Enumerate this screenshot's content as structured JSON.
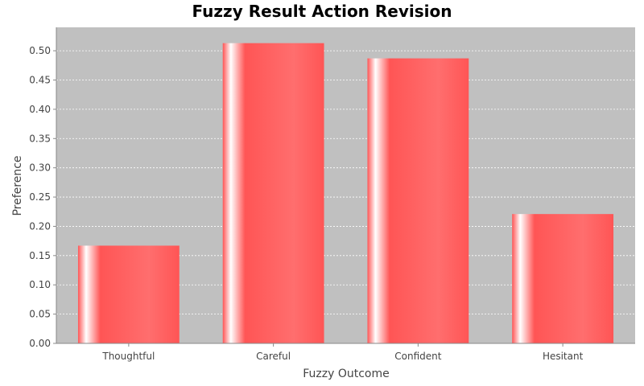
{
  "chart_data": {
    "type": "bar",
    "title": "Fuzzy Result Action Revision",
    "xlabel": "Fuzzy Outcome",
    "ylabel": "Preference",
    "categories": [
      "Thoughtful",
      "Careful",
      "Confident",
      "Hesitant"
    ],
    "values": [
      0.167,
      0.513,
      0.487,
      0.221
    ],
    "ylim": [
      0,
      0.54
    ],
    "yticks": [
      "0.00",
      "0.05",
      "0.10",
      "0.15",
      "0.20",
      "0.25",
      "0.30",
      "0.35",
      "0.40",
      "0.45",
      "0.50"
    ],
    "grid": true,
    "legend": "none",
    "colors": {
      "bar": "#ff5555",
      "bar_highlight": "#ffffff",
      "plot_background": "#c0c0c0",
      "grid": "#ffffff"
    }
  }
}
